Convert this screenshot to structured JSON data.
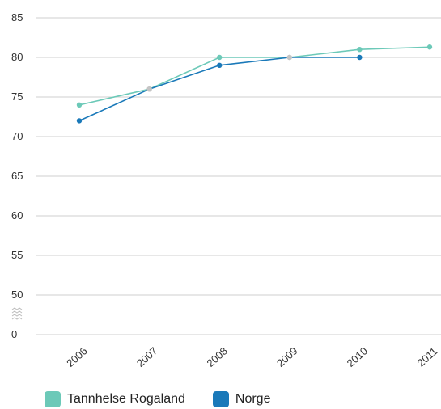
{
  "chart_data": {
    "type": "line",
    "categories": [
      "2006",
      "2007",
      "2008",
      "2009",
      "2010",
      "2011"
    ],
    "y_ticks": [
      "0",
      "50",
      "55",
      "60",
      "65",
      "70",
      "75",
      "80",
      "85"
    ],
    "y_axis_break": true,
    "ylim": [
      50,
      85
    ],
    "grid": true,
    "legend_position": "bottom-left",
    "series": [
      {
        "name": "Tannhelse Rogaland",
        "color": "#6cc9b8",
        "values": [
          74,
          76,
          80,
          80,
          81,
          81.3
        ]
      },
      {
        "name": "Norge",
        "color": "#1a79b9",
        "values": [
          72,
          76,
          79,
          80,
          80,
          null
        ]
      }
    ],
    "overlap_point_color": "#c4c4c4"
  }
}
